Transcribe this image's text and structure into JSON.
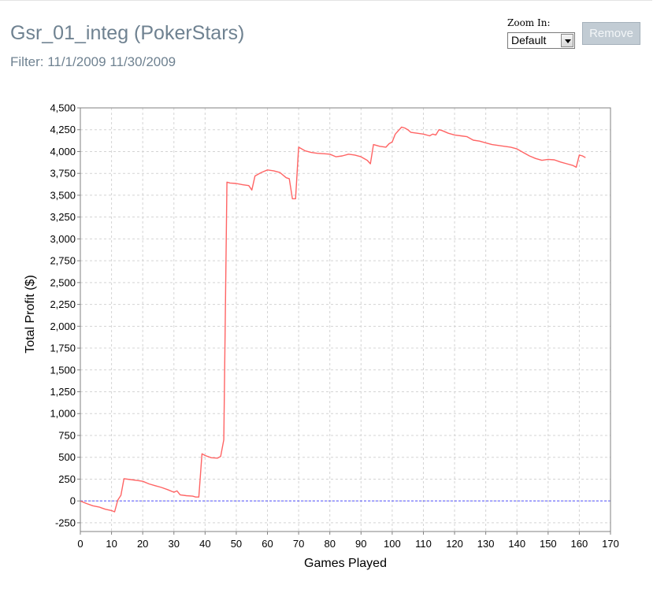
{
  "header": {
    "title": "Gsr_01_integ (PokerStars)",
    "filter": "Filter: 11/1/2009 11/30/2009"
  },
  "controls": {
    "zoom_label": "Zoom In:",
    "zoom_value": "Default",
    "remove_label": "Remove"
  },
  "colors": {
    "series": "#ff6464",
    "zero_line": "#5050ff",
    "grid": "#d4d4d4"
  },
  "chart_data": {
    "type": "line",
    "title": "",
    "xlabel": "Games Played",
    "ylabel": "Total Profit ($)",
    "xlim": [
      0,
      170
    ],
    "ylim": [
      -350,
      4500
    ],
    "xticks": [
      "0",
      "10",
      "20",
      "30",
      "40",
      "50",
      "60",
      "70",
      "80",
      "90",
      "100",
      "110",
      "120",
      "130",
      "140",
      "150",
      "160",
      "170"
    ],
    "yticks": [
      "-250",
      "0",
      "250",
      "500",
      "750",
      "1,000",
      "1,250",
      "1,500",
      "1,750",
      "2,000",
      "2,250",
      "2,500",
      "2,750",
      "3,000",
      "3,250",
      "3,500",
      "3,750",
      "4,000",
      "4,250",
      "4,500"
    ],
    "grid": true,
    "legend": "none",
    "reference_line": {
      "y": 0
    },
    "series": [
      {
        "x": [
          0,
          2,
          4,
          6,
          8,
          10,
          11,
          12,
          13,
          14,
          16,
          18,
          20,
          22,
          24,
          26,
          28,
          30,
          31,
          32,
          34,
          36,
          37,
          38,
          39,
          40,
          42,
          44,
          45,
          46,
          47,
          48,
          50,
          52,
          54,
          55,
          56,
          58,
          60,
          62,
          64,
          66,
          67,
          68,
          69,
          70,
          72,
          74,
          76,
          78,
          80,
          82,
          84,
          86,
          88,
          90,
          92,
          93,
          94,
          95,
          96,
          98,
          99,
          100,
          101,
          103,
          104,
          105,
          106,
          108,
          110,
          112,
          113,
          114,
          115,
          116,
          118,
          120,
          122,
          124,
          126,
          128,
          130,
          132,
          134,
          136,
          138,
          140,
          142,
          144,
          146,
          148,
          150,
          152,
          154,
          156,
          158,
          159,
          160,
          161,
          162
        ],
        "values": [
          0,
          -30,
          -55,
          -70,
          -95,
          -110,
          -125,
          10,
          65,
          255,
          245,
          235,
          225,
          195,
          175,
          155,
          130,
          100,
          115,
          70,
          60,
          55,
          45,
          45,
          540,
          520,
          495,
          490,
          510,
          700,
          3650,
          3640,
          3635,
          3620,
          3610,
          3560,
          3720,
          3760,
          3790,
          3780,
          3760,
          3700,
          3690,
          3460,
          3460,
          4050,
          4010,
          3990,
          3980,
          3975,
          3970,
          3940,
          3950,
          3970,
          3960,
          3940,
          3900,
          3860,
          4080,
          4070,
          4060,
          4050,
          4090,
          4110,
          4200,
          4280,
          4270,
          4250,
          4220,
          4210,
          4200,
          4180,
          4200,
          4190,
          4250,
          4240,
          4210,
          4190,
          4180,
          4170,
          4130,
          4120,
          4100,
          4080,
          4070,
          4060,
          4050,
          4030,
          3990,
          3950,
          3920,
          3900,
          3910,
          3905,
          3880,
          3860,
          3840,
          3820,
          3960,
          3950,
          3930
        ]
      }
    ]
  }
}
